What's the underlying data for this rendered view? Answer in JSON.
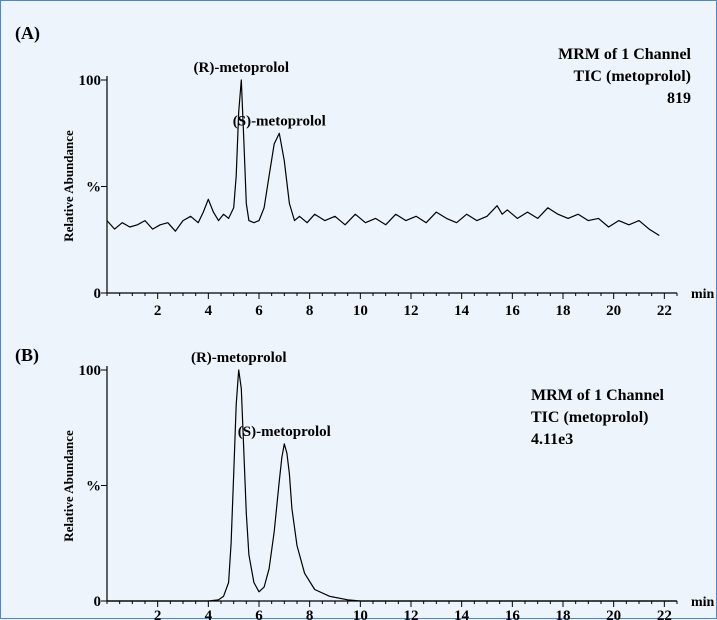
{
  "chart_data": [
    {
      "type": "line",
      "panel_label": "(A)",
      "ylabel": "Relative Abundance",
      "y_ticks": [
        "0",
        "%",
        "100"
      ],
      "x_unit_label": "min",
      "x_ticks": [
        2,
        4,
        6,
        8,
        10,
        12,
        14,
        16,
        18,
        20,
        22
      ],
      "xlim": [
        0,
        22.5
      ],
      "ylim": [
        0,
        100
      ],
      "info_lines": [
        "MRM of 1 Channel",
        "TIC (metoprolol)",
        "819"
      ],
      "info_align": "right",
      "peak_labels": [
        {
          "text": "(R)-metoprolol",
          "x": 5.3,
          "y": 100
        },
        {
          "text": "(S)-metoprolol",
          "x": 6.8,
          "y": 75
        }
      ],
      "series": [
        {
          "x": [
            0,
            0.3,
            0.6,
            0.9,
            1.2,
            1.5,
            1.8,
            2.1,
            2.4,
            2.7,
            3.0,
            3.3,
            3.6,
            3.8,
            4.0,
            4.2,
            4.4,
            4.6,
            4.8,
            5.0,
            5.1,
            5.2,
            5.3,
            5.4,
            5.5,
            5.6,
            5.8,
            6.0,
            6.2,
            6.4,
            6.6,
            6.8,
            7.0,
            7.2,
            7.4,
            7.6,
            7.9,
            8.2,
            8.6,
            9.0,
            9.4,
            9.8,
            10.2,
            10.6,
            11.0,
            11.4,
            11.8,
            12.2,
            12.6,
            13.0,
            13.4,
            13.8,
            14.2,
            14.6,
            15.0,
            15.4,
            15.6,
            15.8,
            16.2,
            16.6,
            17.0,
            17.4,
            17.8,
            18.2,
            18.6,
            19.0,
            19.4,
            19.8,
            20.2,
            20.6,
            21.0,
            21.4,
            21.8
          ],
          "y": [
            34,
            30,
            33,
            31,
            32,
            34,
            30,
            32,
            33,
            29,
            34,
            36,
            33,
            38,
            44,
            38,
            34,
            37,
            35,
            40,
            55,
            85,
            100,
            72,
            42,
            34,
            33,
            34,
            40,
            55,
            70,
            75,
            62,
            42,
            34,
            36,
            33,
            37,
            34,
            36,
            32,
            37,
            33,
            35,
            32,
            37,
            34,
            36,
            33,
            38,
            35,
            33,
            37,
            34,
            36,
            41,
            37,
            39,
            35,
            38,
            35,
            40,
            37,
            35,
            37,
            34,
            35,
            31,
            34,
            32,
            34,
            30,
            27
          ]
        }
      ]
    },
    {
      "type": "line",
      "panel_label": "(B)",
      "ylabel": "Relative Abundance",
      "y_ticks": [
        "0",
        "%",
        "100"
      ],
      "x_unit_label": "min",
      "x_ticks": [
        2,
        4,
        6,
        8,
        10,
        12,
        14,
        16,
        18,
        20,
        22
      ],
      "xlim": [
        0,
        22.5
      ],
      "ylim": [
        0,
        100
      ],
      "info_lines": [
        "MRM of 1 Channel",
        "TIC (metoprolol)",
        "4.11e3"
      ],
      "info_align": "left",
      "peak_labels": [
        {
          "text": "(R)-metoprolol",
          "x": 5.2,
          "y": 100
        },
        {
          "text": "(S)-metoprolol",
          "x": 7.0,
          "y": 68
        }
      ],
      "series": [
        {
          "x": [
            0,
            4.0,
            4.4,
            4.6,
            4.8,
            4.9,
            5.0,
            5.1,
            5.2,
            5.3,
            5.4,
            5.5,
            5.6,
            5.8,
            6.0,
            6.2,
            6.4,
            6.6,
            6.8,
            6.9,
            7.0,
            7.1,
            7.2,
            7.3,
            7.5,
            7.8,
            8.2,
            8.8,
            9.5,
            10.0,
            22.5
          ],
          "y": [
            0,
            0,
            0.5,
            2,
            8,
            25,
            55,
            85,
            100,
            92,
            65,
            38,
            20,
            8,
            4,
            6,
            14,
            30,
            52,
            62,
            68,
            64,
            55,
            40,
            24,
            12,
            5,
            2,
            0.5,
            0,
            0
          ]
        }
      ]
    }
  ]
}
